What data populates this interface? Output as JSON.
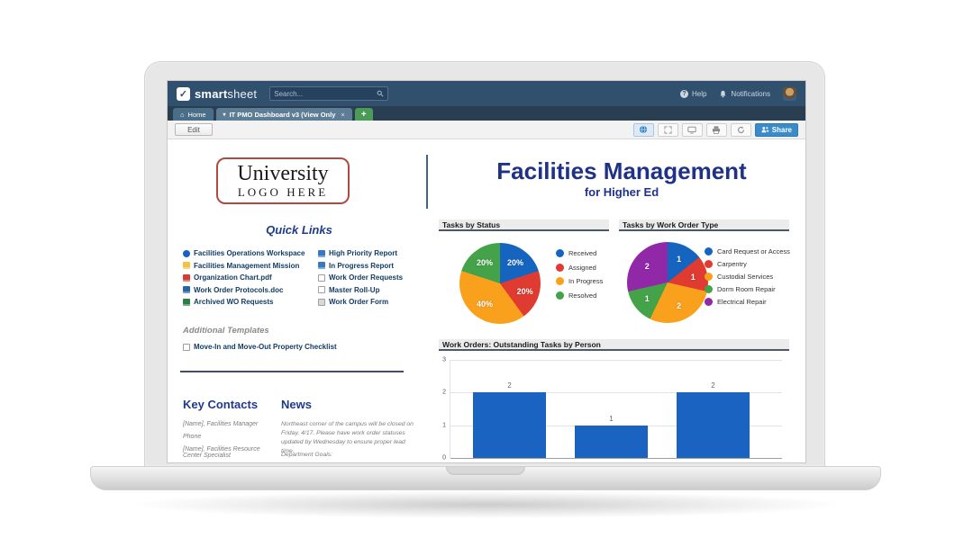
{
  "header": {
    "logo_check": "✓",
    "logo_smart": "smart",
    "logo_sheet": "sheet",
    "search_placeholder": "Search...",
    "help_label": "Help",
    "help_glyph": "?",
    "notifications_label": "Notifications"
  },
  "tabs": {
    "home_label": "Home",
    "home_glyph": "⌂",
    "active_caret": "▾",
    "active_label": "IT PMO Dashboard v3 (View Only",
    "active_close": "×",
    "new_tab": "+"
  },
  "toolbar": {
    "edit_label": "Edit",
    "share_label": "Share"
  },
  "branding": {
    "logo_line1": "University",
    "logo_line2": "LOGO HERE"
  },
  "quick_links": {
    "title": "Quick Links",
    "left": [
      {
        "label": "Facilities Operations Workspace",
        "icon": "workspace-icon",
        "color": "#1565c0",
        "shape": "circle"
      },
      {
        "label": "Facilities Management Mission",
        "icon": "sheet-icon",
        "color": "#f2c43d",
        "shape": "solid"
      },
      {
        "label": "Organization Chart.pdf",
        "icon": "pdf-icon",
        "color": "#d93a32",
        "shape": "solid"
      },
      {
        "label": "Work Order Protocols.doc",
        "icon": "doc-icon",
        "color": "#2a63a8",
        "shape": "solid"
      },
      {
        "label": "Archived WO Requests",
        "icon": "archive-icon",
        "color": "#2e7d46",
        "shape": "solid"
      }
    ],
    "right": [
      {
        "label": "High Priority Report",
        "icon": "report-icon",
        "color": "#3b78c3",
        "shape": "solid"
      },
      {
        "label": "In Progress Report",
        "icon": "report-icon",
        "color": "#3b78c3",
        "shape": "solid"
      },
      {
        "label": "Work Order Requests",
        "icon": "sheet-icon",
        "color": "#ffffff",
        "shape": "outline"
      },
      {
        "label": "Master Roll-Up",
        "icon": "sheet-icon",
        "color": "#ffffff",
        "shape": "outline"
      },
      {
        "label": "Work Order Form",
        "icon": "form-icon",
        "color": "#d9d9d9",
        "shape": "outline"
      }
    ]
  },
  "additional_templates": {
    "title": "Additional Templates",
    "items": [
      {
        "label": "Move-In and Move-Out Property Checklist",
        "icon": "sheet-icon",
        "color": "#ffffff",
        "shape": "outline"
      }
    ]
  },
  "key_contacts": {
    "title": "Key Contacts",
    "lines": [
      "[Name], Facilities Manager",
      "Phone",
      "[Name],  Facilities Resource Center Specialist"
    ]
  },
  "news": {
    "title": "News",
    "body": "Northeast corner of the campus will be closed on Friday, 4/17.  Please have work order statuses updated by Wednesday to ensure proper lead time.",
    "body2": "Department Goals:"
  },
  "main_title": {
    "title": "Facilities Management",
    "subtitle": "for Higher Ed"
  },
  "chart_data": [
    {
      "type": "pie",
      "title": "Tasks by Status",
      "labels": [
        "Received",
        "Assigned",
        "In Progress",
        "Resolved"
      ],
      "values": [
        20,
        20,
        40,
        20
      ],
      "slice_labels": [
        "20%",
        "20%",
        "40%",
        "20%"
      ],
      "colors": [
        "#1565c0",
        "#e03b30",
        "#f9a11c",
        "#44a248"
      ],
      "legend_position": "right"
    },
    {
      "type": "pie",
      "title": "Tasks by Work Order Type",
      "labels": [
        "Card Request or Access",
        "Carpentry",
        "Custodial Services",
        "Dorm Room Repair",
        "Electrical Repair"
      ],
      "values": [
        1,
        1,
        2,
        1,
        2
      ],
      "slice_labels": [
        "1",
        "1",
        "2",
        "1",
        "2"
      ],
      "colors": [
        "#1565c0",
        "#e03b30",
        "#f9a11c",
        "#44a248",
        "#9128a8"
      ],
      "legend_position": "right"
    },
    {
      "type": "bar",
      "title": "Work Orders: Outstanding Tasks by Person",
      "categories": [
        "",
        "",
        ""
      ],
      "values": [
        2,
        1,
        2
      ],
      "bar_labels": [
        "2",
        "1",
        "2"
      ],
      "bar_color": "#1b63c1",
      "ylim": [
        0,
        3
      ],
      "yticks": [
        0,
        1,
        2,
        3
      ],
      "grid": true
    }
  ]
}
